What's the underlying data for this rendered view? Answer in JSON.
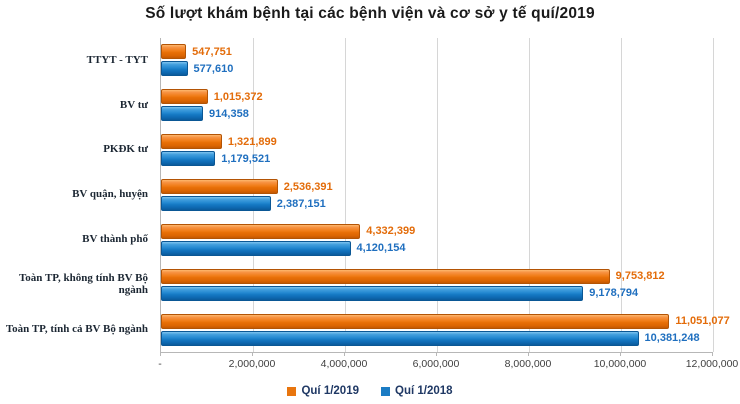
{
  "title": "Số lượt khám bệnh tại các bệnh viện và cơ sở y tế quí/2019",
  "chart_data": {
    "type": "bar",
    "orientation": "horizontal",
    "title": "Số lượt khám bệnh tại các bệnh viện và cơ sở y tế quí/2019",
    "categories": [
      "TTYT - TYT",
      "BV tư",
      "PKĐK tư",
      "BV quận, huyện",
      "BV thành phố",
      "Toàn TP, không tính BV Bộ ngành",
      "Toàn TP, tính cả BV Bộ ngành"
    ],
    "series": [
      {
        "name": "Quí 1/2019",
        "color": "#e8750e",
        "label_color": "#e36c0a",
        "values": [
          547751,
          1015372,
          1321899,
          2536391,
          4332399,
          9753812,
          11051077
        ]
      },
      {
        "name": "Quí 1/2018",
        "color": "#1b7cc4",
        "label_color": "#1f6fbf",
        "values": [
          577610,
          914358,
          1179521,
          2387151,
          4120154,
          9178794,
          10381248
        ]
      }
    ],
    "xlim": [
      0,
      12000000
    ],
    "x_ticks": [
      "-",
      "2,000,000",
      "4,000,000",
      "6,000,000",
      "8,000,000",
      "10,000,000",
      "12,000,000"
    ],
    "grid": "vertical",
    "legend_position": "bottom",
    "legend": [
      "Quí 1/2019",
      "Quí 1/2018"
    ]
  }
}
